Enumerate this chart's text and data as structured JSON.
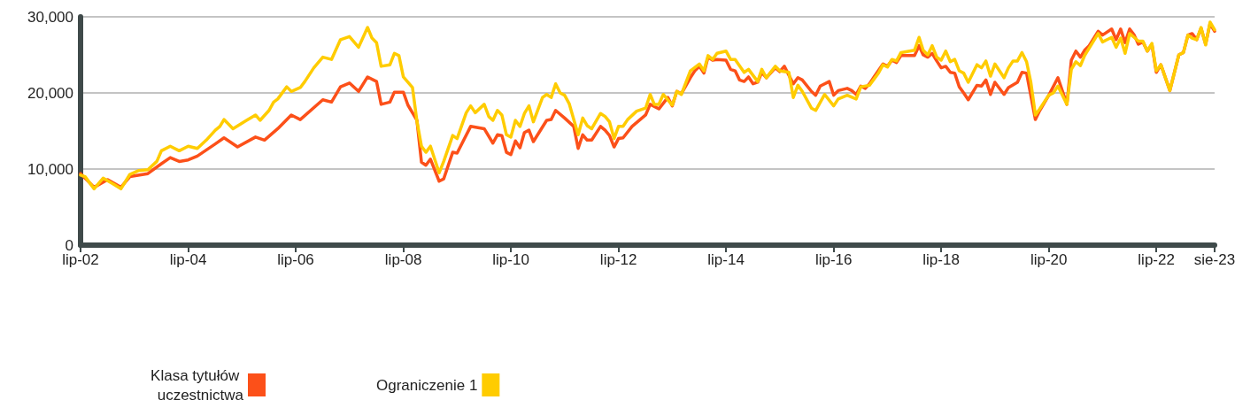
{
  "chart_data": {
    "type": "line",
    "xlim": [
      "2002-07",
      "2023-08"
    ],
    "xticks": [
      {
        "value": "2002-07",
        "label": "lip-02"
      },
      {
        "value": "2004-07",
        "label": "lip-04"
      },
      {
        "value": "2006-07",
        "label": "lip-06"
      },
      {
        "value": "2008-07",
        "label": "lip-08"
      },
      {
        "value": "2010-07",
        "label": "lip-10"
      },
      {
        "value": "2012-07",
        "label": "lip-12"
      },
      {
        "value": "2014-07",
        "label": "lip-14"
      },
      {
        "value": "2016-07",
        "label": "lip-16"
      },
      {
        "value": "2018-07",
        "label": "lip-18"
      },
      {
        "value": "2020-07",
        "label": "lip-20"
      },
      {
        "value": "2022-07",
        "label": "lip-22"
      },
      {
        "value": "2023-08",
        "label": "sie-23"
      }
    ],
    "ylim": [
      0,
      30000
    ],
    "yticks": [
      0,
      {
        "value": 10000,
        "label": "10,000"
      },
      {
        "value": 20000,
        "label": "20,000"
      },
      {
        "value": 30000,
        "label": "30,000"
      }
    ],
    "grid": "y",
    "legend": "bottom",
    "marker": "none",
    "series": [
      {
        "name": "Klasa tytułów uczestnictwa",
        "color": "#fc5019",
        "x": [
          "2002-07",
          "2002-10",
          "2003-01",
          "2003-04",
          "2003-06",
          "2003-10",
          "2004-01",
          "2004-03",
          "2004-05",
          "2004-07",
          "2004-09",
          "2005-01",
          "2005-03",
          "2005-06",
          "2005-10",
          "2005-12",
          "2006-03",
          "2006-06",
          "2006-08",
          "2007-01",
          "2007-03",
          "2007-05",
          "2007-07",
          "2007-09",
          "2007-11",
          "2008-01",
          "2008-02",
          "2008-04",
          "2008-05",
          "2008-07",
          "2008-08",
          "2008-10",
          "2008-11",
          "2008-12",
          "2009-01",
          "2009-03",
          "2009-04",
          "2009-06",
          "2009-07",
          "2009-10",
          "2010-01",
          "2010-03",
          "2010-04",
          "2010-05",
          "2010-06",
          "2010-07",
          "2010-08",
          "2010-09",
          "2010-10",
          "2010-11",
          "2010-12",
          "2011-03",
          "2011-04",
          "2011-05",
          "2011-07",
          "2011-09",
          "2011-10",
          "2011-11",
          "2011-12",
          "2012-01",
          "2012-03",
          "2012-04",
          "2012-05",
          "2012-06",
          "2012-07",
          "2012-08",
          "2012-10",
          "2013-01",
          "2013-02",
          "2013-04",
          "2013-06",
          "2013-07",
          "2013-08",
          "2013-09",
          "2013-11",
          "2013-12",
          "2014-01",
          "2014-02",
          "2014-03",
          "2014-04",
          "2014-05",
          "2014-07",
          "2014-08",
          "2014-09",
          "2014-10",
          "2014-11",
          "2014-12",
          "2015-01",
          "2015-02",
          "2015-03",
          "2015-04",
          "2015-06",
          "2015-07",
          "2015-08",
          "2015-10",
          "2015-11",
          "2015-12",
          "2016-02",
          "2016-03",
          "2016-04",
          "2016-06",
          "2016-07",
          "2016-08",
          "2016-10",
          "2016-11",
          "2016-12",
          "2017-01",
          "2017-02",
          "2017-03",
          "2017-04",
          "2017-06",
          "2017-07",
          "2017-08",
          "2017-09",
          "2017-10",
          "2018-01",
          "2018-02",
          "2018-03",
          "2018-04",
          "2018-05",
          "2018-06",
          "2018-07",
          "2018-08",
          "2018-09",
          "2018-10",
          "2018-11",
          "2018-12",
          "2019-01",
          "2019-03",
          "2019-04",
          "2019-05",
          "2019-06",
          "2019-07",
          "2019-09",
          "2019-10",
          "2019-12",
          "2020-01",
          "2020-02",
          "2020-04",
          "2020-05",
          "2020-07",
          "2020-09",
          "2020-11",
          "2020-12",
          "2021-01",
          "2021-02",
          "2021-03",
          "2021-04",
          "2021-06",
          "2021-07",
          "2021-09",
          "2021-10",
          "2021-11",
          "2021-12",
          "2022-01",
          "2022-02",
          "2022-03",
          "2022-04",
          "2022-05",
          "2022-06",
          "2022-07",
          "2022-08",
          "2022-10",
          "2022-12",
          "2023-01",
          "2023-02",
          "2023-03",
          "2023-04",
          "2023-05",
          "2023-06",
          "2023-07",
          "2023-08"
        ],
        "values": [
          9400,
          7600,
          8600,
          7600,
          9000,
          9400,
          10700,
          11500,
          11000,
          11200,
          11700,
          13300,
          14100,
          12900,
          14200,
          13800,
          15300,
          17100,
          16500,
          19100,
          18800,
          20800,
          21300,
          20200,
          22100,
          21500,
          18500,
          18800,
          20100,
          20100,
          18400,
          16400,
          10900,
          10500,
          11300,
          8400,
          8700,
          12200,
          12100,
          15600,
          15300,
          13400,
          14500,
          14400,
          12200,
          11900,
          13700,
          12800,
          14800,
          15100,
          13600,
          16400,
          16500,
          17700,
          16700,
          15600,
          12700,
          14500,
          13800,
          13800,
          15600,
          15100,
          14400,
          12900,
          14000,
          14100,
          15600,
          17100,
          18500,
          17900,
          19400,
          18300,
          20200,
          19900,
          22000,
          22900,
          23500,
          22600,
          24700,
          24300,
          24400,
          24300,
          23100,
          22900,
          21700,
          21500,
          22100,
          21200,
          21400,
          22700,
          22000,
          23300,
          22800,
          23500,
          21200,
          22000,
          21700,
          20200,
          19700,
          20900,
          21500,
          19700,
          20300,
          20600,
          20300,
          19800,
          20900,
          20600,
          21200,
          22100,
          23800,
          23500,
          24300,
          24000,
          24900,
          24900,
          26200,
          25000,
          24700,
          25200,
          24200,
          23300,
          23500,
          22700,
          22600,
          20800,
          20000,
          19100,
          21000,
          20900,
          21700,
          19800,
          21400,
          19800,
          20700,
          21400,
          22700,
          22600,
          16500,
          17700,
          19700,
          22000,
          18500,
          24300,
          25500,
          24700,
          25600,
          26200,
          28100,
          27600,
          28400,
          27000,
          28400,
          26600,
          28400,
          27600,
          26400,
          26700,
          25500,
          26400,
          22700,
          23700,
          20300,
          25000,
          25300,
          27600,
          27800,
          27000,
          28500,
          26400,
          29100,
          28100
        ]
      },
      {
        "name": "Ograniczenie 1",
        "color": "#ffcc00",
        "x": [
          "2002-07",
          "2002-08",
          "2002-10",
          "2002-12",
          "2003-02",
          "2003-04",
          "2003-06",
          "2003-08",
          "2003-10",
          "2003-12",
          "2004-01",
          "2004-03",
          "2004-05",
          "2004-07",
          "2004-09",
          "2004-11",
          "2005-01",
          "2005-02",
          "2005-03",
          "2005-05",
          "2005-08",
          "2005-10",
          "2005-11",
          "2006-01",
          "2006-02",
          "2006-03",
          "2006-05",
          "2006-06",
          "2006-08",
          "2006-09",
          "2006-11",
          "2007-01",
          "2007-03",
          "2007-05",
          "2007-07",
          "2007-09",
          "2007-11",
          "2007-12",
          "2008-01",
          "2008-02",
          "2008-04",
          "2008-05",
          "2008-06",
          "2008-07",
          "2008-09",
          "2008-10",
          "2008-11",
          "2008-12",
          "2009-01",
          "2009-03",
          "2009-04",
          "2009-06",
          "2009-07",
          "2009-09",
          "2009-10",
          "2009-11",
          "2010-01",
          "2010-02",
          "2010-03",
          "2010-04",
          "2010-05",
          "2010-06",
          "2010-07",
          "2010-08",
          "2010-09",
          "2010-10",
          "2010-11",
          "2010-12",
          "2011-02",
          "2011-03",
          "2011-04",
          "2011-05",
          "2011-06",
          "2011-07",
          "2011-08",
          "2011-10",
          "2011-11",
          "2011-12",
          "2012-01",
          "2012-03",
          "2012-04",
          "2012-05",
          "2012-06",
          "2012-07",
          "2012-08",
          "2012-09",
          "2012-11",
          "2013-01",
          "2013-02",
          "2013-03",
          "2013-04",
          "2013-05",
          "2013-07",
          "2013-08",
          "2013-09",
          "2013-11",
          "2014-01",
          "2014-02",
          "2014-03",
          "2014-04",
          "2014-05",
          "2014-07",
          "2014-08",
          "2014-09",
          "2014-11",
          "2014-12",
          "2015-02",
          "2015-03",
          "2015-04",
          "2015-06",
          "2015-07",
          "2015-09",
          "2015-10",
          "2015-11",
          "2015-12",
          "2016-02",
          "2016-03",
          "2016-05",
          "2016-07",
          "2016-08",
          "2016-10",
          "2016-12",
          "2017-01",
          "2017-03",
          "2017-05",
          "2017-06",
          "2017-07",
          "2017-08",
          "2017-09",
          "2017-10",
          "2018-01",
          "2018-02",
          "2018-03",
          "2018-04",
          "2018-05",
          "2018-06",
          "2018-07",
          "2018-08",
          "2018-09",
          "2018-10",
          "2018-11",
          "2018-12",
          "2019-01",
          "2019-03",
          "2019-04",
          "2019-05",
          "2019-06",
          "2019-07",
          "2019-09",
          "2019-10",
          "2019-11",
          "2019-12",
          "2020-01",
          "2020-02",
          "2020-03",
          "2020-04",
          "2020-05",
          "2020-07",
          "2020-08",
          "2020-09",
          "2020-11",
          "2020-12",
          "2021-01",
          "2021-02",
          "2021-03",
          "2021-06",
          "2021-07",
          "2021-08",
          "2021-09",
          "2021-10",
          "2021-11",
          "2021-12",
          "2022-01",
          "2022-02",
          "2022-03",
          "2022-04",
          "2022-05",
          "2022-06",
          "2022-07",
          "2022-08",
          "2022-10",
          "2022-12",
          "2023-01",
          "2023-02",
          "2023-03",
          "2023-04",
          "2023-05",
          "2023-06",
          "2023-07",
          "2023-08"
        ],
        "values": [
          9200,
          9000,
          7400,
          8800,
          8100,
          7400,
          9300,
          9800,
          9900,
          11000,
          12400,
          13000,
          12400,
          13000,
          12700,
          13800,
          15100,
          15600,
          16500,
          15300,
          16400,
          17100,
          16400,
          17700,
          18800,
          19200,
          20800,
          20200,
          20700,
          21500,
          23300,
          24700,
          24400,
          27000,
          27400,
          26000,
          28600,
          27200,
          26600,
          23500,
          23700,
          25200,
          24900,
          22100,
          20700,
          16300,
          13000,
          12200,
          13000,
          9500,
          11000,
          14400,
          14000,
          17400,
          18300,
          17400,
          18500,
          16900,
          16400,
          17700,
          17100,
          14500,
          14200,
          16400,
          15600,
          17300,
          18300,
          16200,
          19400,
          19800,
          19400,
          21200,
          20000,
          19700,
          18600,
          14500,
          16700,
          15700,
          15300,
          17300,
          16900,
          16200,
          14000,
          15600,
          15600,
          16500,
          17600,
          18000,
          19800,
          18500,
          18500,
          19800,
          18400,
          20200,
          19800,
          22900,
          23800,
          22900,
          24900,
          24400,
          25200,
          25500,
          24400,
          24400,
          22700,
          23100,
          21500,
          23100,
          22000,
          23500,
          22900,
          22700,
          19400,
          21000,
          20200,
          18000,
          17700,
          19800,
          18300,
          19200,
          19700,
          19200,
          20800,
          21000,
          22600,
          23700,
          23400,
          24400,
          24200,
          25300,
          25600,
          27300,
          25600,
          25000,
          26200,
          24700,
          24300,
          25500,
          24100,
          24400,
          22900,
          22600,
          21400,
          23700,
          23300,
          24200,
          22200,
          23800,
          22000,
          23300,
          24200,
          24200,
          25300,
          24100,
          21400,
          17100,
          17900,
          19700,
          20000,
          20900,
          18500,
          23100,
          24100,
          23600,
          24900,
          27800,
          26700,
          27000,
          27300,
          26000,
          27200,
          25200,
          27800,
          27300,
          26800,
          26800,
          25500,
          26500,
          22900,
          23700,
          20300,
          25000,
          25300,
          27600,
          27200,
          27000,
          28600,
          26300,
          29300,
          28300
        ]
      }
    ]
  }
}
